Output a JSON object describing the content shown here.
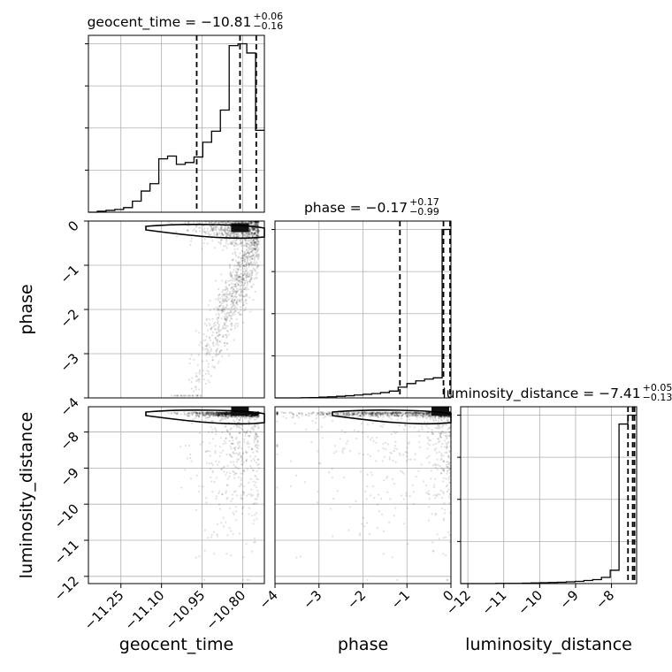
{
  "chart_data": {
    "type": "corner",
    "parameters": [
      {
        "name": "geocent_time",
        "label": "geocent_time",
        "title_main": "geocent_time = −10.81",
        "title_plus": "+0.06",
        "title_minus": "−0.16",
        "median": -10.81,
        "q16": -10.97,
        "q84": -10.75,
        "range": [
          -11.37,
          -10.72
        ],
        "ticks": [
          -11.25,
          -11.1,
          -10.95,
          -10.8
        ],
        "tick_labels": [
          "−11.25",
          "−11.10",
          "−10.95",
          "−10.80"
        ],
        "hist_edges": [
          -11.37,
          -11.3375,
          -11.305,
          -11.2725,
          -11.24,
          -11.2075,
          -11.175,
          -11.1425,
          -11.11,
          -11.0775,
          -11.045,
          -11.0125,
          -10.98,
          -10.9475,
          -10.915,
          -10.8825,
          -10.85,
          -10.8175,
          -10.785,
          -10.7525,
          -10.72
        ],
        "hist_counts": [
          0,
          2,
          4,
          6,
          10,
          24,
          46,
          62,
          116,
          122,
          104,
          108,
          120,
          152,
          176,
          222,
          362,
          366,
          346,
          178
        ]
      },
      {
        "name": "phase",
        "label": "phase",
        "title_main": "phase = −0.17",
        "title_plus": "+0.17",
        "title_minus": "−0.99",
        "median": -0.17,
        "q16": -1.16,
        "q84": 0.0,
        "range": [
          -4.0,
          0.0
        ],
        "ticks": [
          -4,
          -3,
          -2,
          -1,
          0
        ],
        "tick_labels": [
          "−4",
          "−3",
          "−2",
          "−1",
          "0"
        ],
        "hist_edges": [
          -4.0,
          -3.8,
          -3.6,
          -3.4,
          -3.2,
          -3.0,
          -2.8,
          -2.6,
          -2.4,
          -2.2,
          -2.0,
          -1.8,
          -1.6,
          -1.4,
          -1.2,
          -1.0,
          -0.8,
          -0.6,
          -0.4,
          -0.2,
          0.0
        ],
        "hist_counts": [
          0,
          0,
          0,
          1,
          2,
          4,
          6,
          9,
          12,
          16,
          20,
          24,
          30,
          38,
          60,
          80,
          95,
          105,
          112,
          940
        ]
      },
      {
        "name": "luminosity_distance",
        "label": "luminosity_distance",
        "title_main": "luminosity_distance = −7.41",
        "title_plus": "+0.05",
        "title_minus": "−0.13",
        "median": -7.41,
        "q16": -7.54,
        "q84": -7.36,
        "range": [
          -12.2,
          -7.3
        ],
        "ticks": [
          -12,
          -11,
          -10,
          -9,
          -8
        ],
        "tick_labels": [
          "−12",
          "−11",
          "−10",
          "−9",
          "−8"
        ],
        "hist_edges": [
          -12.2,
          -11.955,
          -11.71,
          -11.465,
          -11.22,
          -10.975,
          -10.73,
          -10.485,
          -10.24,
          -9.995,
          -9.75,
          -9.505,
          -9.26,
          -9.015,
          -8.77,
          -8.525,
          -8.28,
          -8.035,
          -7.79,
          -7.545,
          -7.3
        ],
        "hist_counts": [
          0,
          0,
          0,
          0,
          1,
          1,
          1,
          2,
          3,
          4,
          5,
          6,
          8,
          10,
          14,
          18,
          28,
          60,
          720,
          760
        ]
      }
    ],
    "contour_levels_note_shown": false,
    "samples_seed": 7
  }
}
